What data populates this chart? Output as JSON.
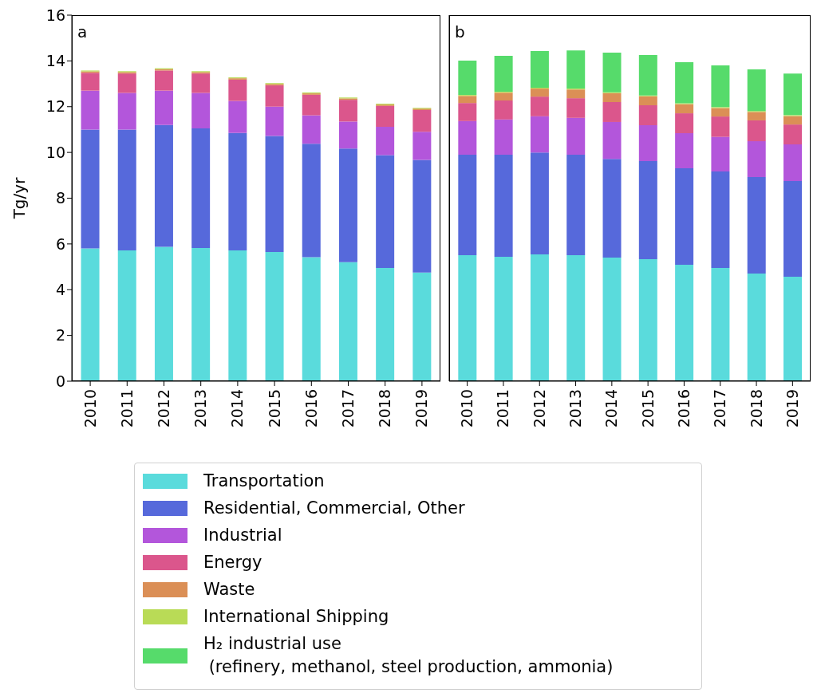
{
  "chart_data": [
    {
      "type": "bar",
      "title": "a",
      "ylabel": "Tg/yr",
      "stacked": true,
      "categories": [
        "2010",
        "2011",
        "2012",
        "2013",
        "2014",
        "2015",
        "2016",
        "2017",
        "2018",
        "2019"
      ],
      "ylim": [
        0,
        16
      ],
      "yticks": [
        0,
        2,
        4,
        6,
        8,
        10,
        12,
        14,
        16
      ],
      "series": [
        {
          "color": "#5adbdc",
          "values": [
            5.8,
            5.72,
            5.87,
            5.82,
            5.72,
            5.65,
            5.42,
            5.2,
            4.95,
            4.75
          ]
        },
        {
          "color": "#5669db",
          "values": [
            5.2,
            5.28,
            5.33,
            5.23,
            5.13,
            5.07,
            4.96,
            4.97,
            4.93,
            4.92
          ]
        },
        {
          "color": "#b356db",
          "values": [
            1.7,
            1.6,
            1.5,
            1.55,
            1.4,
            1.28,
            1.24,
            1.18,
            1.24,
            1.23
          ]
        },
        {
          "color": "#db568c",
          "values": [
            0.78,
            0.85,
            0.88,
            0.85,
            0.93,
            0.93,
            0.9,
            0.95,
            0.91,
            0.95
          ]
        },
        {
          "color": "#db8f56",
          "values": [
            0.06,
            0.06,
            0.06,
            0.06,
            0.06,
            0.06,
            0.06,
            0.06,
            0.06,
            0.06
          ]
        },
        {
          "color": "#b9db56",
          "values": [
            0.04,
            0.04,
            0.04,
            0.04,
            0.04,
            0.04,
            0.04,
            0.04,
            0.04,
            0.04
          ]
        }
      ]
    },
    {
      "type": "bar",
      "title": "b",
      "stacked": true,
      "legend": "bottom",
      "tick_labels": "x",
      "categories": [
        "2010",
        "2011",
        "2012",
        "2013",
        "2014",
        "2015",
        "2016",
        "2017",
        "2018",
        "2019"
      ],
      "ylim": [
        0,
        16
      ],
      "yticks": [
        0,
        2,
        4,
        6,
        8,
        10,
        12,
        14,
        16
      ],
      "series": [
        {
          "name": "Transportation",
          "color": "#5adbdc",
          "values": [
            5.51,
            5.44,
            5.54,
            5.51,
            5.4,
            5.33,
            5.09,
            4.95,
            4.71,
            4.57
          ]
        },
        {
          "name": "Residential, Commercial, Other",
          "color": "#5669db",
          "values": [
            4.39,
            4.46,
            4.46,
            4.39,
            4.32,
            4.29,
            4.22,
            4.22,
            4.21,
            4.18
          ]
        },
        {
          "name": "Industrial",
          "color": "#b356db",
          "values": [
            1.47,
            1.54,
            1.58,
            1.61,
            1.61,
            1.57,
            1.53,
            1.51,
            1.57,
            1.6
          ]
        },
        {
          "name": "Energy",
          "color": "#db568c",
          "values": [
            0.79,
            0.83,
            0.86,
            0.86,
            0.87,
            0.87,
            0.87,
            0.89,
            0.91,
            0.87
          ]
        },
        {
          "name": "Waste",
          "color": "#db8f56",
          "values": [
            0.31,
            0.34,
            0.35,
            0.38,
            0.39,
            0.39,
            0.4,
            0.37,
            0.37,
            0.37
          ]
        },
        {
          "name": "International Shipping",
          "color": "#b9db56",
          "values": [
            0.04,
            0.04,
            0.04,
            0.04,
            0.04,
            0.04,
            0.04,
            0.04,
            0.04,
            0.04
          ]
        },
        {
          "name": "H₂ industrial use\n (refinery, methanol, steel production, ammonia)",
          "color": "#56db6b",
          "values": [
            1.5,
            1.57,
            1.6,
            1.67,
            1.73,
            1.77,
            1.79,
            1.82,
            1.82,
            1.82
          ]
        }
      ]
    }
  ]
}
